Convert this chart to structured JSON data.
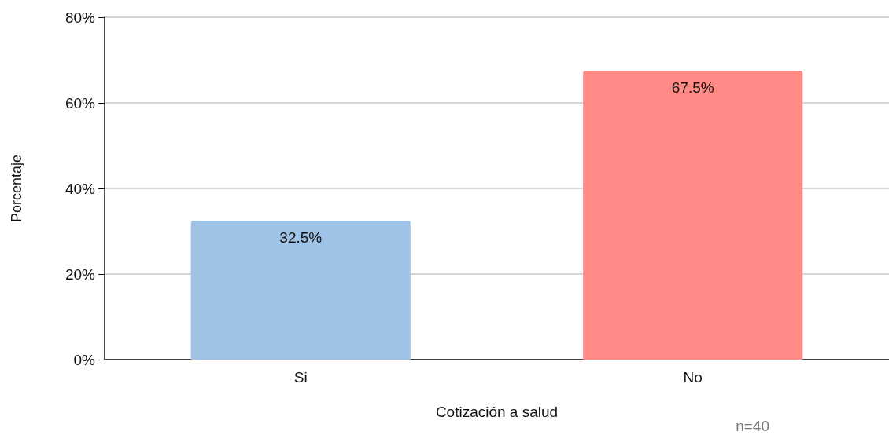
{
  "chart_data": {
    "type": "bar",
    "xlabel": "Cotización a salud",
    "ylabel": "Porcentaje",
    "categories": [
      "Si",
      "No"
    ],
    "values": [
      32.5,
      67.5
    ],
    "colors": [
      "#9fc3e6",
      "#ff8a86"
    ],
    "value_labels": [
      "32.5%",
      "67.5%"
    ],
    "ylim": [
      0,
      80
    ],
    "yticks": [
      {
        "value": 0,
        "label": "0%"
      },
      {
        "value": 20,
        "label": "20%"
      },
      {
        "value": 40,
        "label": "40%"
      },
      {
        "value": 60,
        "label": "60%"
      },
      {
        "value": 80,
        "label": "80%"
      }
    ],
    "grid": "y",
    "annotations": [
      "n=40"
    ]
  }
}
